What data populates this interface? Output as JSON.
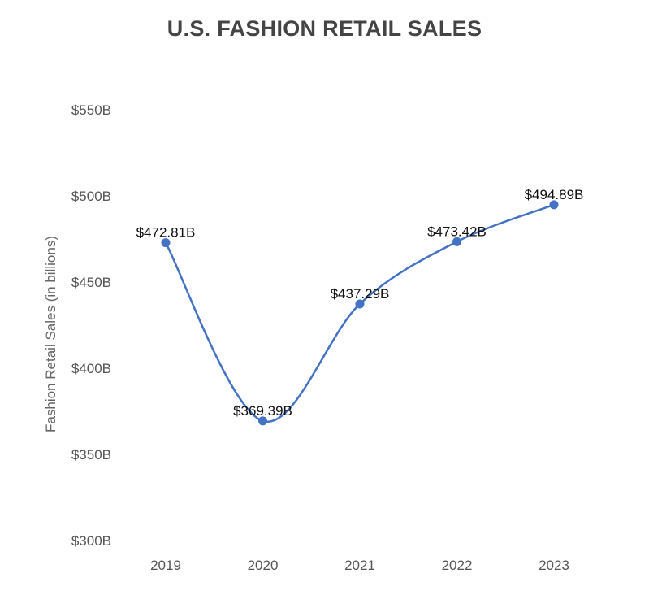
{
  "chart_data": {
    "type": "line",
    "title": "U.S. FASHION RETAIL SALES",
    "xlabel": "",
    "ylabel": "Fashion Retail Sales (in billions)",
    "categories": [
      "2019",
      "2020",
      "2021",
      "2022",
      "2023"
    ],
    "series": [
      {
        "values": [
          472.81,
          369.39,
          437.29,
          473.42,
          494.89
        ],
        "labels": [
          "$472.81B",
          "$369.39B",
          "$437.29B",
          "$473.42B",
          "$494.89B"
        ]
      }
    ],
    "yticks": [
      300,
      350,
      400,
      450,
      500,
      550
    ],
    "ytick_labels": [
      "$300B",
      "$350B",
      "$400B",
      "$450B",
      "$500B",
      "$550B"
    ],
    "ylim": [
      300,
      550
    ],
    "grid": false,
    "smooth": true,
    "line_color": "#4472c4"
  }
}
